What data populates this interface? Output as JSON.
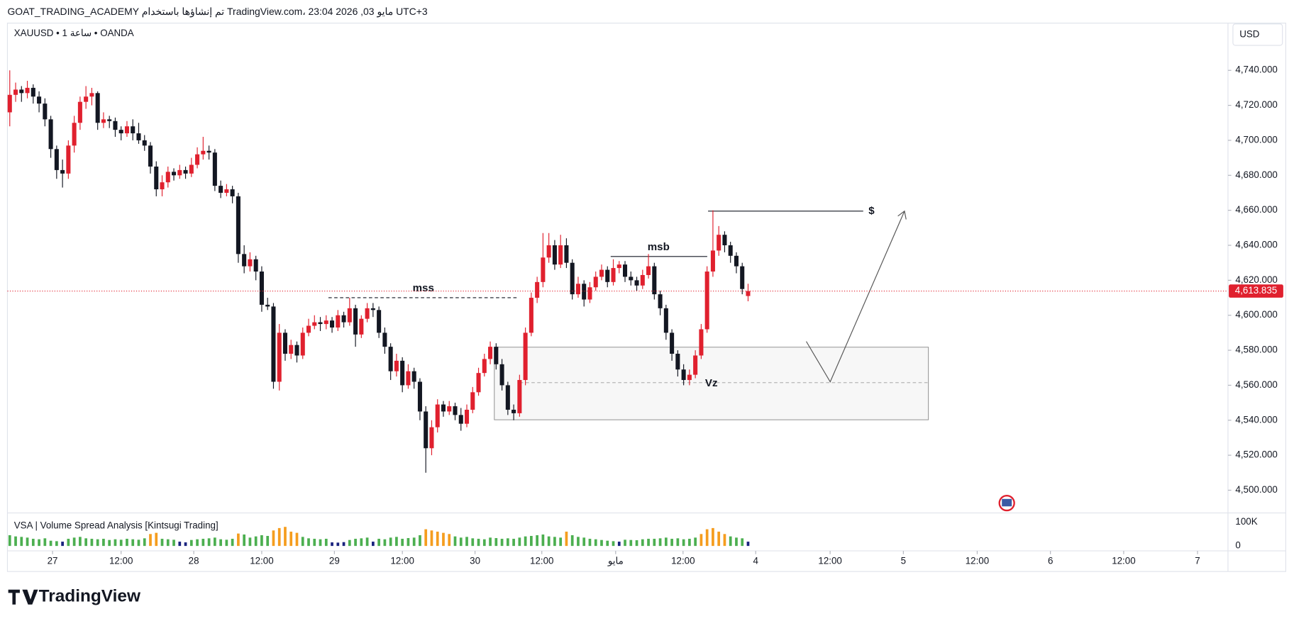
{
  "header": {
    "title": "GOAT_TRADING_ACADEMY تم إنشاؤها باستخدام TradingView.com، 23:04 2026 ,03 مايو UTC+3",
    "symbol": "XAUUSD • 1 ساعة • OANDA",
    "currency": "USD"
  },
  "indicator": {
    "name": "VSA | Volume Spread Analysis [Kintsugi Trading]"
  },
  "footer": {
    "logo": "TradingView"
  },
  "chart_data": {
    "type": "candlestick",
    "up_color": "#e0202e",
    "down_color": "#131722",
    "xlim": [
      -0.4,
      207.9
    ],
    "ylim": [
      4487,
      4767
    ],
    "xticks": [
      {
        "value": 7.3,
        "label": "27"
      },
      {
        "value": 19,
        "label": "12:00"
      },
      {
        "value": 31.4,
        "label": "28"
      },
      {
        "value": 43,
        "label": "12:00"
      },
      {
        "value": 55.4,
        "label": "29"
      },
      {
        "value": 67,
        "label": "12:00"
      },
      {
        "value": 79.4,
        "label": "30"
      },
      {
        "value": 90.8,
        "label": "12:00"
      },
      {
        "value": 103.4,
        "label": "مايو"
      },
      {
        "value": 114.9,
        "label": "12:00"
      },
      {
        "value": 127.3,
        "label": "4"
      },
      {
        "value": 140,
        "label": "12:00"
      },
      {
        "value": 152.5,
        "label": "5"
      },
      {
        "value": 165.1,
        "label": "12:00"
      },
      {
        "value": 177.6,
        "label": "6"
      },
      {
        "value": 190.1,
        "label": "12:00"
      },
      {
        "value": 202.7,
        "label": "7"
      }
    ],
    "yticks": [
      {
        "value": 4500,
        "label": "4,500.000"
      },
      {
        "value": 4520,
        "label": "4,520.000"
      },
      {
        "value": 4540,
        "label": "4,540.000"
      },
      {
        "value": 4560,
        "label": "4,560.000"
      },
      {
        "value": 4580,
        "label": "4,580.000"
      },
      {
        "value": 4600,
        "label": "4,600.000"
      },
      {
        "value": 4620,
        "label": "4,620.000"
      },
      {
        "value": 4640,
        "label": "4,640.000"
      },
      {
        "value": 4660,
        "label": "4,660.000"
      },
      {
        "value": 4680,
        "label": "4,680.000"
      },
      {
        "value": 4700,
        "label": "4,700.000"
      },
      {
        "value": 4720,
        "label": "4,720.000"
      },
      {
        "value": 4740,
        "label": "4,740.000"
      }
    ],
    "last_price": {
      "value": 4613.835,
      "label": "4,613.835"
    },
    "annotations": [
      "mss",
      "msb",
      "Vz",
      "$"
    ],
    "candles": [
      [
        4716,
        4740,
        4708,
        4726
      ],
      [
        4726,
        4733,
        4722,
        4729
      ],
      [
        4729,
        4731,
        4722,
        4727
      ],
      [
        4727,
        4734,
        4724,
        4730
      ],
      [
        4730,
        4732,
        4721,
        4725
      ],
      [
        4725,
        4728,
        4716,
        4721
      ],
      [
        4721,
        4724,
        4708,
        4712
      ],
      [
        4712,
        4714,
        4690,
        4695
      ],
      [
        4695,
        4697,
        4678,
        4683
      ],
      [
        4683,
        4689,
        4673,
        4681
      ],
      [
        4681,
        4700,
        4678,
        4697
      ],
      [
        4697,
        4714,
        4693,
        4710
      ],
      [
        4710,
        4725,
        4706,
        4722
      ],
      [
        4722,
        4731,
        4718,
        4725
      ],
      [
        4725,
        4730,
        4720,
        4727
      ],
      [
        4727,
        4728,
        4706,
        4710
      ],
      [
        4710,
        4716,
        4707,
        4712
      ],
      [
        4712,
        4714,
        4707,
        4711
      ],
      [
        4711,
        4713,
        4702,
        4706
      ],
      [
        4706,
        4708,
        4700,
        4704
      ],
      [
        4704,
        4711,
        4702,
        4708
      ],
      [
        4708,
        4712,
        4700,
        4704
      ],
      [
        4704,
        4710,
        4698,
        4700
      ],
      [
        4700,
        4703,
        4694,
        4697
      ],
      [
        4697,
        4699,
        4681,
        4685
      ],
      [
        4685,
        4688,
        4668,
        4672
      ],
      [
        4672,
        4680,
        4668,
        4676
      ],
      [
        4676,
        4685,
        4673,
        4682
      ],
      [
        4682,
        4684,
        4677,
        4680
      ],
      [
        4680,
        4686,
        4678,
        4683
      ],
      [
        4683,
        4685,
        4678,
        4681
      ],
      [
        4681,
        4690,
        4679,
        4686
      ],
      [
        4686,
        4696,
        4684,
        4692
      ],
      [
        4692,
        4702,
        4689,
        4694
      ],
      [
        4694,
        4697,
        4689,
        4693
      ],
      [
        4693,
        4695,
        4671,
        4674
      ],
      [
        4674,
        4677,
        4667,
        4670
      ],
      [
        4670,
        4675,
        4668,
        4672
      ],
      [
        4672,
        4674,
        4664,
        4668
      ],
      [
        4668,
        4670,
        4630,
        4635
      ],
      [
        4635,
        4640,
        4624,
        4628
      ],
      [
        4628,
        4636,
        4625,
        4632
      ],
      [
        4632,
        4634,
        4620,
        4625
      ],
      [
        4625,
        4628,
        4602,
        4606
      ],
      [
        4606,
        4610,
        4603,
        4605
      ],
      [
        4605,
        4607,
        4558,
        4562
      ],
      [
        4562,
        4595,
        4557,
        4590
      ],
      [
        4590,
        4592,
        4574,
        4578
      ],
      [
        4578,
        4586,
        4575,
        4583
      ],
      [
        4583,
        4585,
        4573,
        4577
      ],
      [
        4577,
        4593,
        4575,
        4590
      ],
      [
        4590,
        4598,
        4588,
        4594
      ],
      [
        4594,
        4600,
        4592,
        4596
      ],
      [
        4596,
        4599,
        4591,
        4595
      ],
      [
        4595,
        4600,
        4592,
        4597
      ],
      [
        4597,
        4599,
        4590,
        4593
      ],
      [
        4593,
        4603,
        4591,
        4600
      ],
      [
        4600,
        4602,
        4593,
        4596
      ],
      [
        4596,
        4610,
        4594,
        4604
      ],
      [
        4604,
        4606,
        4582,
        4589
      ],
      [
        4589,
        4600,
        4587,
        4598
      ],
      [
        4598,
        4607,
        4596,
        4604
      ],
      [
        4604,
        4607,
        4599,
        4603
      ],
      [
        4603,
        4605,
        4587,
        4590
      ],
      [
        4590,
        4593,
        4578,
        4582
      ],
      [
        4582,
        4584,
        4563,
        4568
      ],
      [
        4568,
        4578,
        4565,
        4574
      ],
      [
        4574,
        4576,
        4556,
        4560
      ],
      [
        4560,
        4572,
        4558,
        4568
      ],
      [
        4568,
        4570,
        4558,
        4562
      ],
      [
        4562,
        4564,
        4540,
        4545
      ],
      [
        4545,
        4548,
        4510,
        4524
      ],
      [
        4524,
        4540,
        4520,
        4536
      ],
      [
        4536,
        4552,
        4533,
        4549
      ],
      [
        4549,
        4551,
        4542,
        4545
      ],
      [
        4545,
        4551,
        4543,
        4548
      ],
      [
        4548,
        4550,
        4540,
        4543
      ],
      [
        4543,
        4547,
        4534,
        4538
      ],
      [
        4538,
        4549,
        4536,
        4546
      ],
      [
        4546,
        4559,
        4544,
        4556
      ],
      [
        4556,
        4570,
        4554,
        4567
      ],
      [
        4567,
        4578,
        4565,
        4575
      ],
      [
        4575,
        4585,
        4572,
        4582
      ],
      [
        4582,
        4584,
        4569,
        4572
      ],
      [
        4572,
        4575,
        4557,
        4560
      ],
      [
        4560,
        4562,
        4543,
        4546
      ],
      [
        4546,
        4549,
        4540,
        4544
      ],
      [
        4544,
        4566,
        4542,
        4563
      ],
      [
        4563,
        4593,
        4560,
        4590
      ],
      [
        4590,
        4613,
        4588,
        4610
      ],
      [
        4610,
        4622,
        4607,
        4619
      ],
      [
        4619,
        4647,
        4616,
        4633
      ],
      [
        4633,
        4647,
        4630,
        4640
      ],
      [
        4640,
        4643,
        4626,
        4629
      ],
      [
        4629,
        4646,
        4627,
        4640
      ],
      [
        4640,
        4644,
        4627,
        4630
      ],
      [
        4630,
        4632,
        4609,
        4612
      ],
      [
        4612,
        4622,
        4610,
        4618
      ],
      [
        4618,
        4620,
        4605,
        4609
      ],
      [
        4609,
        4619,
        4607,
        4616
      ],
      [
        4616,
        4625,
        4614,
        4622
      ],
      [
        4622,
        4629,
        4620,
        4626
      ],
      [
        4626,
        4628,
        4616,
        4619
      ],
      [
        4619,
        4632,
        4617,
        4627
      ],
      [
        4627,
        4631,
        4624,
        4629
      ],
      [
        4629,
        4631,
        4619,
        4622
      ],
      [
        4622,
        4625,
        4617,
        4620
      ],
      [
        4620,
        4622,
        4614,
        4617
      ],
      [
        4617,
        4626,
        4615,
        4623
      ],
      [
        4623,
        4635,
        4621,
        4628
      ],
      [
        4628,
        4630,
        4609,
        4612
      ],
      [
        4612,
        4614,
        4600,
        4604
      ],
      [
        4604,
        4606,
        4586,
        4590
      ],
      [
        4590,
        4592,
        4574,
        4578
      ],
      [
        4578,
        4580,
        4565,
        4569
      ],
      [
        4569,
        4572,
        4560,
        4563
      ],
      [
        4563,
        4569,
        4560,
        4566
      ],
      [
        4566,
        4580,
        4564,
        4577
      ],
      [
        4577,
        4595,
        4575,
        4592
      ],
      [
        4592,
        4628,
        4590,
        4625
      ],
      [
        4625,
        4660,
        4622,
        4637
      ],
      [
        4637,
        4651,
        4634,
        4646
      ],
      [
        4646,
        4648,
        4636,
        4640
      ],
      [
        4640,
        4642,
        4630,
        4634
      ],
      [
        4634,
        4636,
        4624,
        4628
      ],
      [
        4628,
        4630,
        4612,
        4615
      ],
      [
        4611,
        4618,
        4608,
        4613.835
      ]
    ],
    "volume_ylim": [
      0,
      128
    ],
    "volume_ticks": [
      {
        "value": 100,
        "label": "100K"
      },
      0
    ],
    "volume": [
      45,
      40,
      38,
      35,
      30,
      28,
      32,
      22,
      20,
      18,
      30,
      35,
      38,
      32,
      30,
      28,
      30,
      25,
      28,
      26,
      30,
      28,
      26,
      32,
      50,
      55,
      30,
      28,
      26,
      18,
      15,
      25,
      28,
      30,
      32,
      35,
      28,
      26,
      30,
      52,
      48,
      35,
      40,
      45,
      42,
      65,
      75,
      80,
      60,
      55,
      38,
      32,
      30,
      28,
      30,
      15,
      14,
      16,
      25,
      30,
      32,
      35,
      18,
      30,
      28,
      35,
      38,
      30,
      33,
      35,
      45,
      70,
      65,
      60,
      55,
      50,
      40,
      35,
      38,
      32,
      30,
      28,
      35,
      33,
      30,
      32,
      30,
      35,
      40,
      42,
      45,
      48,
      40,
      38,
      35,
      60,
      45,
      38,
      35,
      30,
      28,
      25,
      22,
      20,
      18,
      26,
      25,
      24,
      28,
      30,
      30,
      32,
      35,
      30,
      32,
      28,
      30,
      35,
      50,
      70,
      75,
      60,
      50,
      40,
      35,
      32,
      18
    ],
    "volume_colors": [
      "#4caf50",
      "#4caf50",
      "#4caf50",
      "#4caf50",
      "#4caf50",
      "#4caf50",
      "#4caf50",
      "#4caf50",
      "#4caf50",
      "#1a237e",
      "#4caf50",
      "#4caf50",
      "#4caf50",
      "#4caf50",
      "#4caf50",
      "#4caf50",
      "#4caf50",
      "#4caf50",
      "#4caf50",
      "#4caf50",
      "#4caf50",
      "#4caf50",
      "#4caf50",
      "#4caf50",
      "#f59d1e",
      "#f59d1e",
      "#4caf50",
      "#4caf50",
      "#4caf50",
      "#1a237e",
      "#1a237e",
      "#4caf50",
      "#4caf50",
      "#4caf50",
      "#4caf50",
      "#4caf50",
      "#4caf50",
      "#4caf50",
      "#4caf50",
      "#f59d1e",
      "#4caf50",
      "#4caf50",
      "#4caf50",
      "#4caf50",
      "#4caf50",
      "#f59d1e",
      "#f59d1e",
      "#f59d1e",
      "#f59d1e",
      "#f59d1e",
      "#4caf50",
      "#4caf50",
      "#4caf50",
      "#4caf50",
      "#4caf50",
      "#1a237e",
      "#1a237e",
      "#1a237e",
      "#4caf50",
      "#4caf50",
      "#4caf50",
      "#4caf50",
      "#1a237e",
      "#4caf50",
      "#4caf50",
      "#4caf50",
      "#4caf50",
      "#4caf50",
      "#4caf50",
      "#4caf50",
      "#4caf50",
      "#f59d1e",
      "#f59d1e",
      "#f59d1e",
      "#f59d1e",
      "#f59d1e",
      "#4caf50",
      "#4caf50",
      "#4caf50",
      "#4caf50",
      "#4caf50",
      "#4caf50",
      "#4caf50",
      "#4caf50",
      "#4caf50",
      "#4caf50",
      "#4caf50",
      "#4caf50",
      "#4caf50",
      "#4caf50",
      "#4caf50",
      "#4caf50",
      "#4caf50",
      "#4caf50",
      "#4caf50",
      "#f59d1e",
      "#4caf50",
      "#4caf50",
      "#4caf50",
      "#4caf50",
      "#4caf50",
      "#4caf50",
      "#4caf50",
      "#4caf50",
      "#1a237e",
      "#4caf50",
      "#4caf50",
      "#4caf50",
      "#4caf50",
      "#4caf50",
      "#4caf50",
      "#4caf50",
      "#4caf50",
      "#4caf50",
      "#4caf50",
      "#4caf50",
      "#4caf50",
      "#4caf50",
      "#f59d1e",
      "#f59d1e",
      "#f59d1e",
      "#f59d1e",
      "#f59d1e",
      "#4caf50",
      "#4caf50",
      "#4caf50",
      "#1a237e"
    ]
  }
}
